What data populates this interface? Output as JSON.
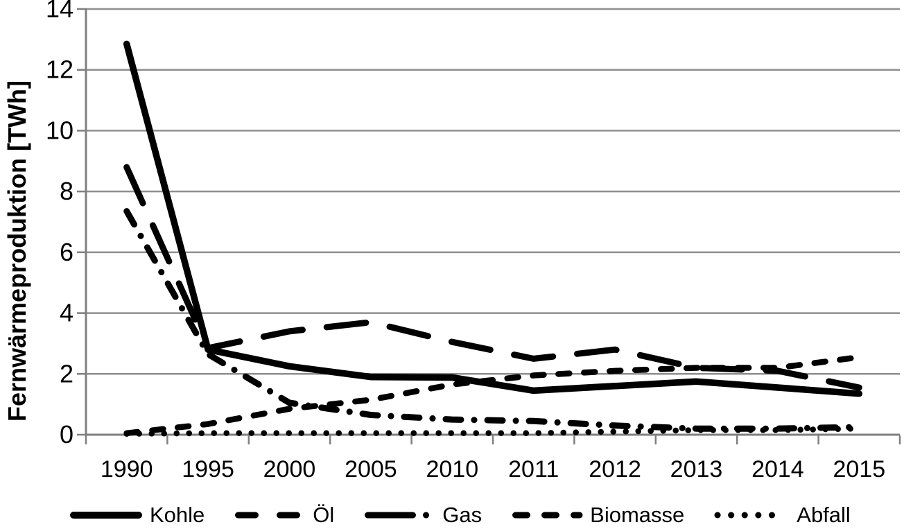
{
  "chart_data": {
    "type": "line",
    "title": "",
    "ylabel": "Fernwärmeproduktion [TWh]",
    "xlabel": "",
    "ylim": [
      0,
      14
    ],
    "yticks": [
      0,
      2,
      4,
      6,
      8,
      10,
      12,
      14
    ],
    "categories": [
      "1990",
      "1995",
      "2000",
      "2005",
      "2010",
      "2011",
      "2012",
      "2013",
      "2014",
      "2015"
    ],
    "series": [
      {
        "name": "Kohle",
        "style": "solid",
        "values": [
          12.85,
          2.8,
          2.25,
          1.9,
          1.88,
          1.45,
          1.6,
          1.75,
          1.55,
          1.35
        ]
      },
      {
        "name": "Öl",
        "style": "long-dash",
        "values": [
          8.8,
          2.85,
          3.4,
          3.7,
          3.05,
          2.5,
          2.8,
          2.2,
          2.1,
          1.55
        ]
      },
      {
        "name": "Gas",
        "style": "dash-dot",
        "values": [
          7.35,
          2.65,
          1.05,
          0.65,
          0.5,
          0.45,
          0.3,
          0.2,
          0.2,
          0.25
        ]
      },
      {
        "name": "Biomasse",
        "style": "dash",
        "values": [
          0.05,
          0.35,
          0.85,
          1.15,
          1.65,
          1.95,
          2.1,
          2.2,
          2.2,
          2.55
        ]
      },
      {
        "name": "Abfall",
        "style": "dot",
        "values": [
          0.03,
          0.05,
          0.05,
          0.05,
          0.05,
          0.05,
          0.1,
          0.15,
          0.15,
          0.2
        ]
      }
    ],
    "line_color": "#000000",
    "grid_color": "#8f8f8f",
    "axis_color": "#7f7f7f",
    "grid": true,
    "legend_position": "bottom"
  }
}
